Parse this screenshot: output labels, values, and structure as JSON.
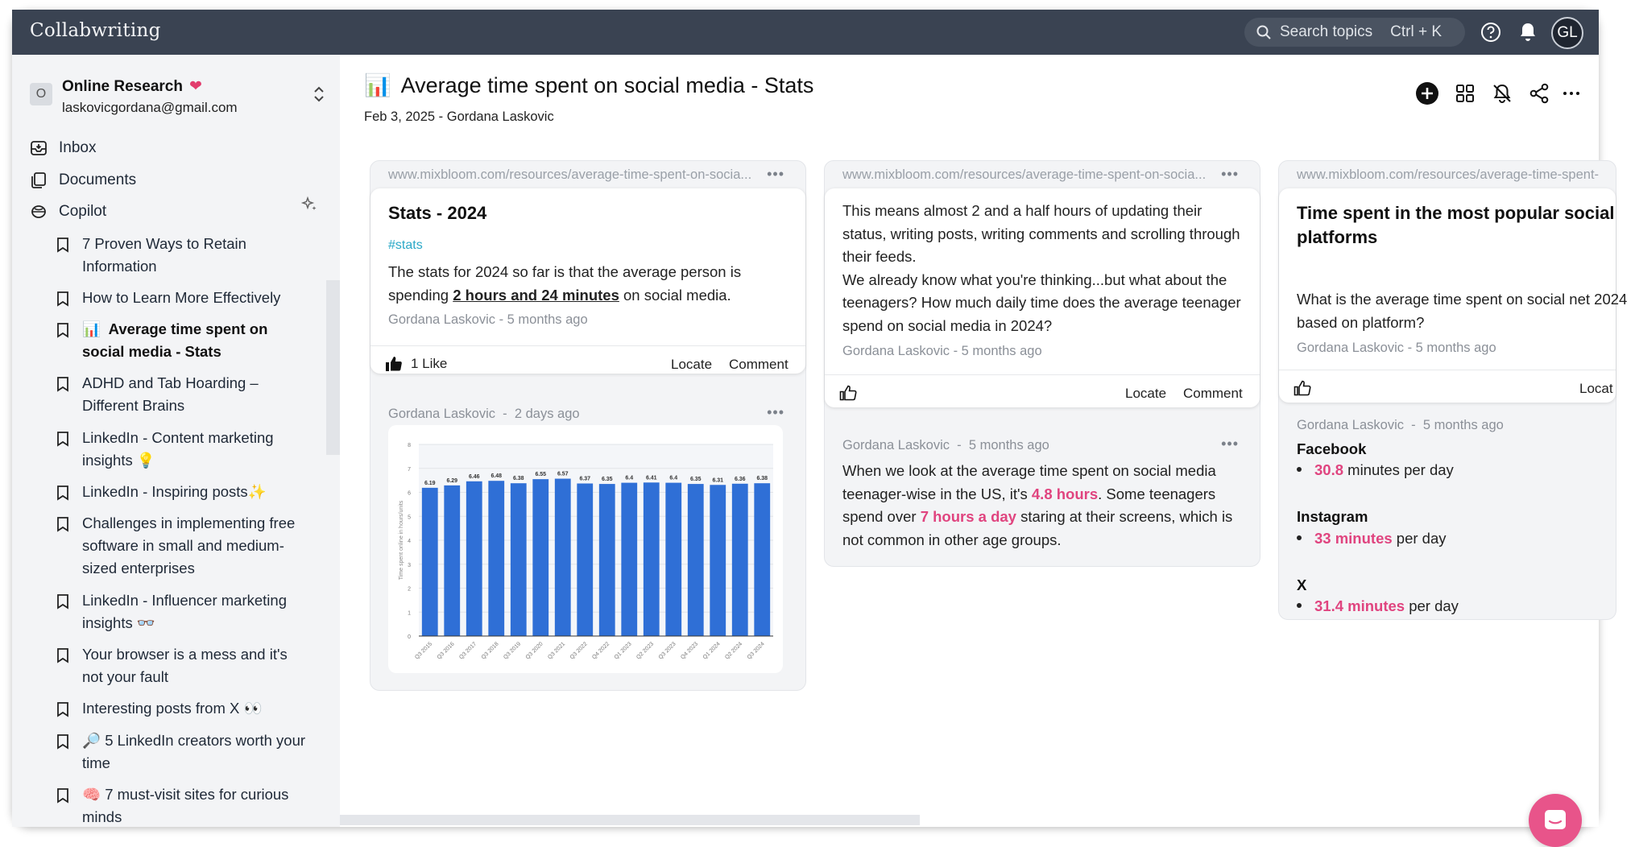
{
  "app": {
    "brand": "Collabwriting"
  },
  "topbar": {
    "search_placeholder": "Search topics",
    "search_shortcut": "Ctrl + K",
    "avatar_initials": "GL"
  },
  "workspace": {
    "badge": "O",
    "name": "Online Research",
    "email": "laskovicgordana@gmail.com"
  },
  "nav": {
    "inbox": "Inbox",
    "documents": "Documents",
    "copilot": "Copilot"
  },
  "documents": [
    {
      "emoji": "",
      "title": "7 Proven Ways to Retain Information"
    },
    {
      "emoji": "",
      "title": "How to Learn More Effectively"
    },
    {
      "emoji": "📊",
      "title": "Average time spent on social media - Stats"
    },
    {
      "emoji": "",
      "title": "ADHD and Tab Hoarding – Different Brains"
    },
    {
      "emoji": "",
      "title": "LinkedIn - Content marketing insights 💡"
    },
    {
      "emoji": "",
      "title": "LinkedIn - Inspiring posts✨"
    },
    {
      "emoji": "",
      "title": "Challenges in implementing free software in small and medium-sized enterprises"
    },
    {
      "emoji": "",
      "title": "LinkedIn - Influencer marketing insights 👓"
    },
    {
      "emoji": "",
      "title": "Your browser is a mess and it's not your fault"
    },
    {
      "emoji": "",
      "title": "Interesting posts from X 👀"
    },
    {
      "emoji": "🔎",
      "title": "5 LinkedIn creators worth your time"
    },
    {
      "emoji": "🧠",
      "title": "7 must-visit sites for curious minds"
    }
  ],
  "page": {
    "emoji": "📊",
    "title": "Average time spent on social media - Stats",
    "meta": "Feb 3, 2025 - Gordana Laskovic"
  },
  "columns": [
    {
      "url": "www.mixbloom.com/resources/average-time-spent-on-socia...",
      "card": {
        "title": "Stats - 2024",
        "tag": "#stats",
        "text_before": "The stats for 2024 so far is that the average person is spending ",
        "text_bold": "2 hours and 24 minutes",
        "text_after": " on social media.",
        "author": "Gordana Laskovic - 5 months ago",
        "like_label": "1 Like",
        "locate": "Locate",
        "comment": "Comment"
      },
      "note": {
        "author": "Gordana Laskovic",
        "sep": "-",
        "time": "2 days ago"
      }
    },
    {
      "url": "www.mixbloom.com/resources/average-time-spent-on-socia...",
      "card": {
        "text1": "This means almost 2 and a half hours of updating their status, writing posts, writing comments and scrolling through their feeds.",
        "text2": "We already know what you're thinking...but what about the teenagers? How much daily time does the average teenager spend on social media in 2024?",
        "author": "Gordana Laskovic - 5 months ago",
        "locate": "Locate",
        "comment": "Comment"
      },
      "note": {
        "author": "Gordana Laskovic",
        "sep": "-",
        "time": "5 months ago",
        "t1": "When we look at the average time spent on social media teenager-wise in the US, it's ",
        "h1": "4.8 hours",
        "t2": ". Some teenagers spend over ",
        "h2": "7 hours a day",
        "t3": " staring at their screens, which is not common in other age groups."
      }
    },
    {
      "url": "www.mixbloom.com/resources/average-time-spent-",
      "card": {
        "title": "Time spent in the most popular social platforms",
        "text": "What is the average time spent on social net 2024 based on platform?",
        "author": "Gordana Laskovic - 5 months ago",
        "locate": "Locat"
      },
      "note": {
        "author": "Gordana Laskovic",
        "sep": "-",
        "time": "5 months ago",
        "platforms": [
          {
            "name": "Facebook",
            "value": "30.8",
            "suffix": " minutes per day"
          },
          {
            "name": "Instagram",
            "value": "33 minutes",
            "suffix": " per day"
          },
          {
            "name": "X",
            "value": "31.4 minutes",
            "suffix": " per day"
          }
        ]
      }
    }
  ],
  "colors": {
    "accent": "#e0447f",
    "tag": "#2aa8c7",
    "bar": "#2f6fd6",
    "topbar": "#3a4352"
  },
  "chart_data": {
    "type": "bar",
    "categories": [
      "Q3 2015",
      "Q3 2016",
      "Q3 2017",
      "Q3 2018",
      "Q3 2019",
      "Q3 2020",
      "Q3 2021",
      "Q3 2022",
      "Q4 2022",
      "Q1 2023",
      "Q2 2023",
      "Q3 2023",
      "Q4 2023",
      "Q1 2024",
      "Q2 2024",
      "Q3 2024"
    ],
    "values": [
      6.19,
      6.29,
      6.46,
      6.48,
      6.38,
      6.55,
      6.57,
      6.37,
      6.35,
      6.4,
      6.41,
      6.4,
      6.35,
      6.31,
      6.36,
      6.38
    ],
    "value_labels": [
      "6.19",
      "6.29",
      "6.46",
      "6.48",
      "6.38",
      "6.55",
      "6.57",
      "6.37",
      "6.35",
      "6.4",
      "6.41",
      "6.4",
      "6.35",
      "6.31",
      "6.36",
      "6.38"
    ],
    "ylabel": "Time spent online in hours/units",
    "yticks": [
      "0",
      "1",
      "2",
      "3",
      "4",
      "5",
      "6",
      "7",
      "8"
    ],
    "ylim": [
      0,
      8
    ],
    "grid": true
  }
}
